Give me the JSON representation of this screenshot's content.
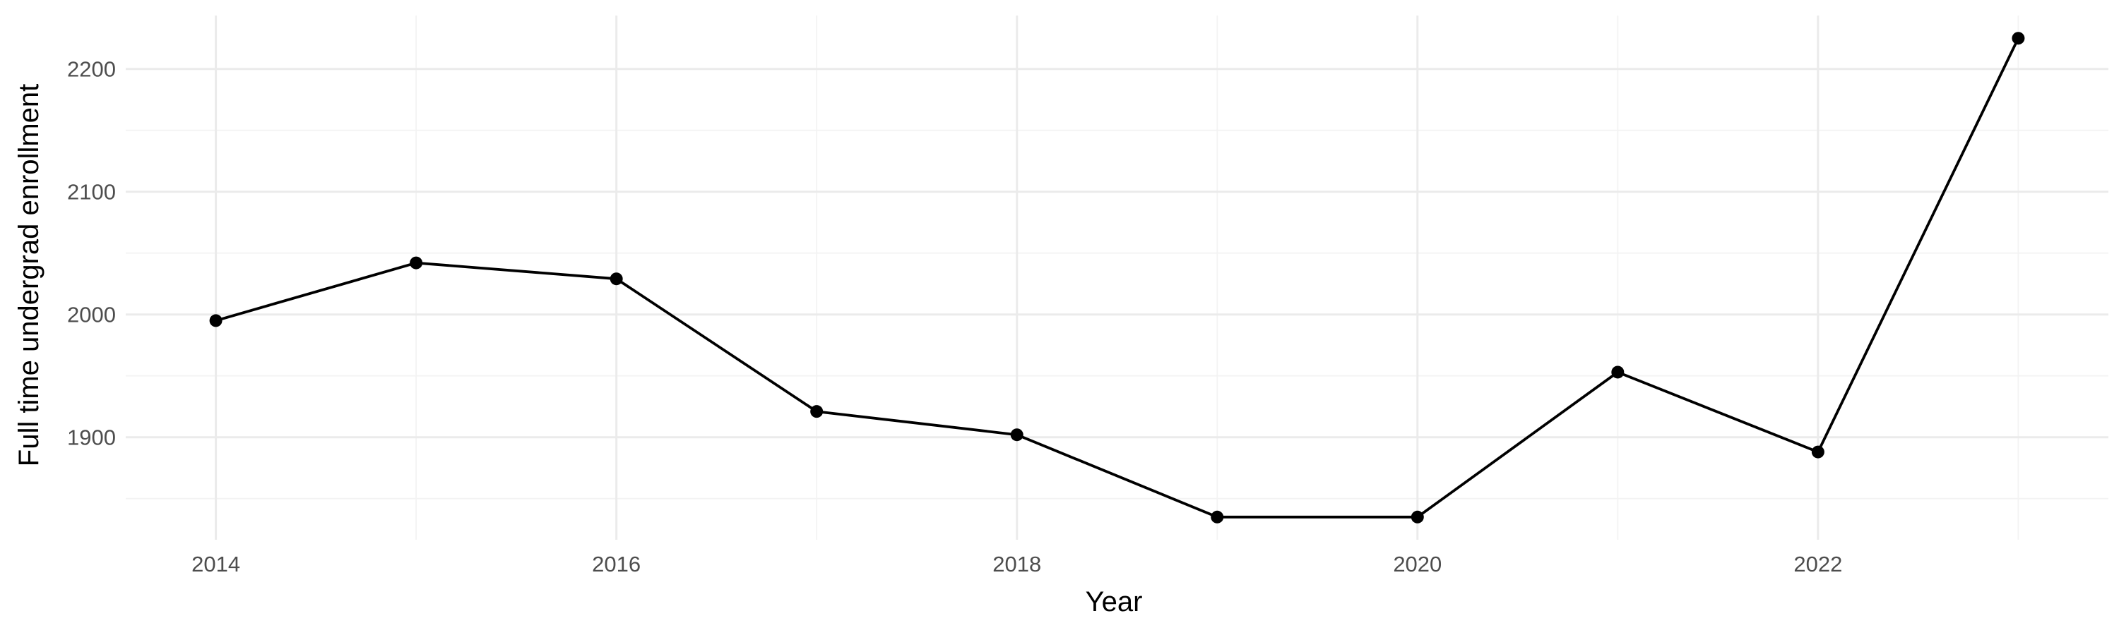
{
  "chart_data": {
    "type": "line",
    "title": "",
    "xlabel": "Year",
    "ylabel": "Full time undergrad enrollment",
    "x": [
      2014,
      2015,
      2016,
      2017,
      2018,
      2019,
      2020,
      2021,
      2022,
      2023
    ],
    "values": [
      1995,
      2042,
      2029,
      1921,
      1902,
      1835,
      1835,
      1953,
      1888,
      2225
    ],
    "xlim": [
      2013.55,
      2023.45
    ],
    "ylim": [
      1816.5,
      2243.5
    ],
    "x_ticks": [
      2014,
      2016,
      2018,
      2020,
      2022
    ],
    "y_ticks": [
      1900,
      2000,
      2100,
      2200
    ],
    "x_tick_labels": [
      "2014",
      "2016",
      "2018",
      "2020",
      "2022"
    ],
    "y_tick_labels": [
      "1900",
      "2000",
      "2100",
      "2200"
    ],
    "x_minor_ticks": [
      2015,
      2017,
      2019,
      2021,
      2023
    ],
    "y_minor_ticks": [
      1850,
      1950,
      2050,
      2150
    ],
    "grid": true,
    "legend": "none",
    "colors": {
      "line": "#000000",
      "point": "#000000",
      "grid": "#ebebeb",
      "background": "#ffffff"
    }
  }
}
